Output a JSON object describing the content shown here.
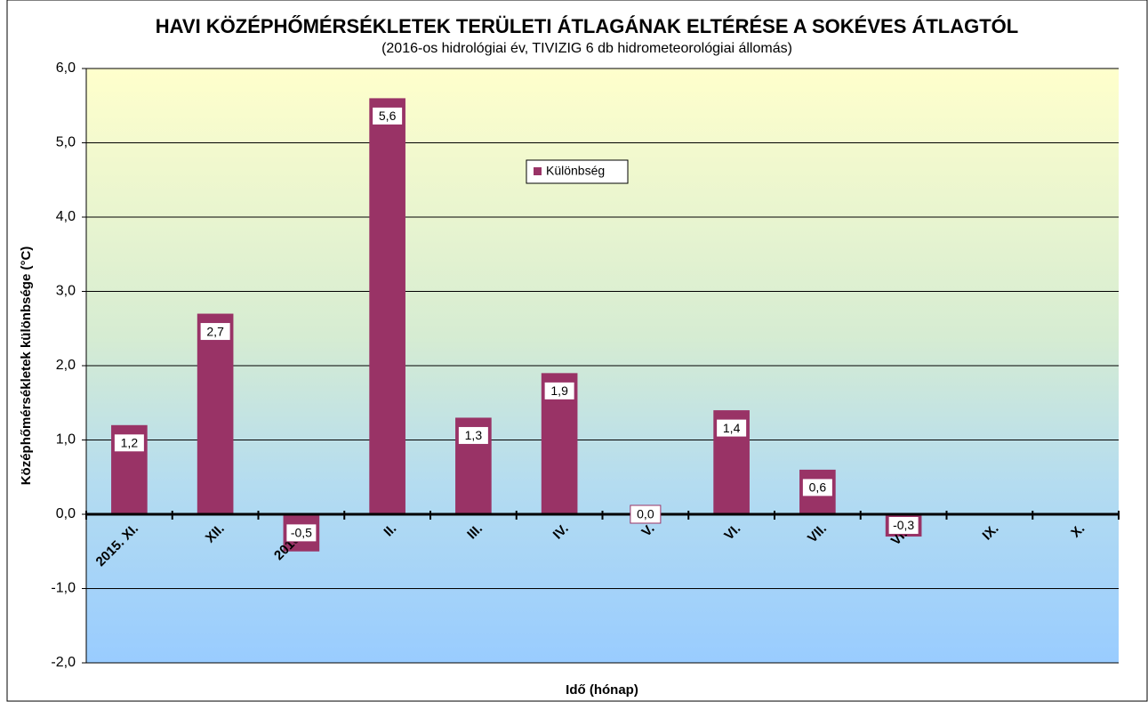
{
  "chart_data": {
    "type": "bar",
    "title": "HAVI KÖZÉPHŐMÉRSÉKLETEK TERÜLETI ÁTLAGÁNAK ELTÉRÉSE A SOKÉVES ÁTLAGTÓL",
    "subtitle": "(2016-os hidrológiai év, TIVIZIG  6 db hidrometeorológiai állomás)",
    "x_label": "Idő (hónap)",
    "y_label": "Középhőmérsékletek különbsége (°C)",
    "categories": [
      "2015. XI.",
      "XII.",
      "2016. I.",
      "II.",
      "III.",
      "IV.",
      "V.",
      "VI.",
      "VII.",
      "VIII.",
      "IX.",
      "X."
    ],
    "series": [
      {
        "name": "Különbség",
        "color": "#993366",
        "values": [
          1.2,
          2.7,
          -0.5,
          5.6,
          1.3,
          1.9,
          0.0,
          1.4,
          0.6,
          -0.3,
          null,
          null
        ],
        "value_labels": [
          "1,2",
          "2,7",
          "-0,5",
          "5,6",
          "1,3",
          "1,9",
          "0,0",
          "1,4",
          "0,6",
          "-0,3",
          null,
          null
        ]
      }
    ],
    "ylim": [
      -2,
      6
    ],
    "yticks": [
      {
        "value": -2,
        "label": "-2,0"
      },
      {
        "value": -1,
        "label": "-1,0"
      },
      {
        "value": 0,
        "label": "0,0"
      },
      {
        "value": 1,
        "label": "1,0"
      },
      {
        "value": 2,
        "label": "2,0"
      },
      {
        "value": 3,
        "label": "3,0"
      },
      {
        "value": 4,
        "label": "4,0"
      },
      {
        "value": 5,
        "label": "5,0"
      },
      {
        "value": 6,
        "label": "6,0"
      }
    ],
    "grid": true,
    "legend": "top"
  }
}
